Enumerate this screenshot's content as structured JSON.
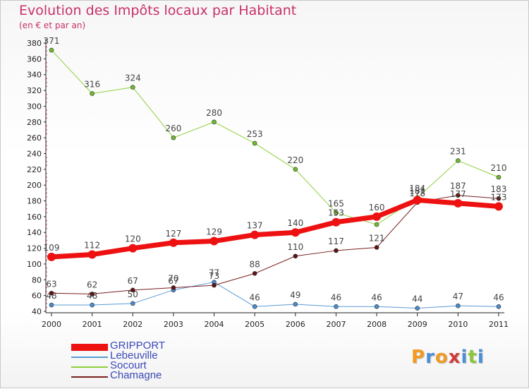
{
  "title": "Evolution des Impôts locaux par Habitant",
  "subtitle": "(en € et par an)",
  "brand": {
    "text": "Proxiti",
    "letters": [
      "P",
      "r",
      "o",
      "x",
      "i",
      "t",
      "i"
    ],
    "colors": [
      "#f39a23",
      "#4a8fd6",
      "#f39a23",
      "#d23a3a",
      "#4a8fd6",
      "#8cc63f",
      "#4a8fd6"
    ]
  },
  "chart_data": {
    "type": "line",
    "title": "Evolution des Impôts locaux par Habitant",
    "subtitle": "(en € et par an)",
    "xlabel": "",
    "ylabel": "",
    "x": [
      "2000",
      "2001",
      "2002",
      "2003",
      "2004",
      "2005",
      "2006",
      "2007",
      "2008",
      "2009",
      "2010",
      "2011"
    ],
    "ylim": [
      40,
      380
    ],
    "yticks": [
      40,
      60,
      80,
      100,
      120,
      140,
      160,
      180,
      200,
      220,
      240,
      260,
      280,
      300,
      320,
      340,
      360,
      380
    ],
    "grid": false,
    "legend_position": "bottom-left",
    "series": [
      {
        "name": "Socourt",
        "color": "#8fcf3c",
        "marker": "#6fba2c",
        "width": 1,
        "values": [
          371,
          316,
          324,
          260,
          280,
          253,
          220,
          165,
          150,
          184,
          231,
          210
        ],
        "labels": [
          "371",
          "316",
          "324",
          "260",
          "280",
          "253",
          "220",
          "165",
          "",
          "184",
          "231",
          "210"
        ]
      },
      {
        "name": "Lebeuville",
        "color": "#5a9bd5",
        "marker": "#4a8ccc",
        "width": 1,
        "values": [
          48,
          48,
          50,
          67,
          77,
          46,
          49,
          46,
          46,
          44,
          47,
          46
        ],
        "labels": [
          "48",
          "48",
          "50",
          "67",
          "77",
          "46",
          "49",
          "46",
          "46",
          "44",
          "47",
          "46"
        ]
      },
      {
        "name": "Chamagne",
        "color": "#7a1f1f",
        "marker": "#5e1414",
        "width": 1,
        "values": [
          63,
          62,
          67,
          70,
          73,
          88,
          110,
          117,
          121,
          178,
          187,
          183
        ],
        "labels": [
          "63",
          "62",
          "67",
          "70",
          "73",
          "88",
          "110",
          "117",
          "121",
          "178",
          "187",
          "183"
        ]
      },
      {
        "name": "GRIPPORT",
        "color": "#ee1111",
        "marker": "#ee1111",
        "width": 7,
        "values": [
          109,
          112,
          120,
          127,
          129,
          137,
          140,
          153,
          160,
          181,
          177,
          173
        ],
        "labels": [
          "109",
          "112",
          "120",
          "127",
          "129",
          "137",
          "140",
          "153",
          "160",
          "181",
          "177",
          "173"
        ]
      }
    ]
  },
  "legend": [
    {
      "name": "GRIPPORT",
      "color": "#ee1111",
      "thickness": 10
    },
    {
      "name": "Lebeuville",
      "color": "#5a9bd5",
      "thickness": 2
    },
    {
      "name": "Socourt",
      "color": "#8fcf3c",
      "thickness": 2
    },
    {
      "name": "Chamagne",
      "color": "#7a1f1f",
      "thickness": 2
    }
  ]
}
